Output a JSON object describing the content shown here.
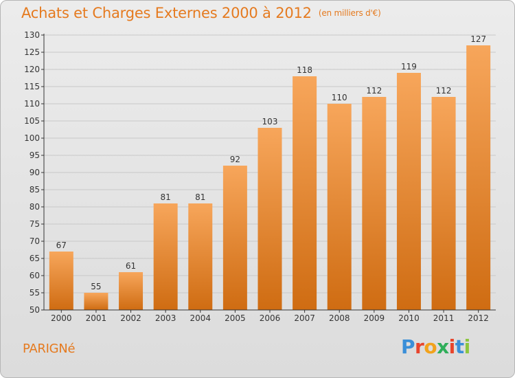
{
  "title": "Achats et Charges Externes 2000 à 2012",
  "unit": "(en milliers d'€)",
  "commune": "PARIGNé",
  "brand": {
    "text": "Proxiti",
    "letter_colors": [
      "#3a8fd8",
      "#e8452c",
      "#f2a21c",
      "#2fae5a",
      "#e8452c",
      "#3a8fd8",
      "#8cc63f"
    ]
  },
  "colors": {
    "bar_top": "#f7a65b",
    "bar_bottom": "#cf6c12",
    "title": "#e57a1f",
    "axis": "#333333",
    "grid": "#c8c8c8"
  },
  "chart_data": {
    "type": "bar",
    "title": "Achats et Charges Externes 2000 à 2012",
    "subtitle": "(en milliers d'€)",
    "categories": [
      "2000",
      "2001",
      "2002",
      "2003",
      "2004",
      "2005",
      "2006",
      "2007",
      "2008",
      "2009",
      "2010",
      "2011",
      "2012"
    ],
    "values": [
      67,
      55,
      61,
      81,
      81,
      92,
      103,
      118,
      110,
      112,
      119,
      112,
      127
    ],
    "ylim": [
      50,
      130
    ],
    "ytick_step": 5,
    "grid": true,
    "data_labels": true
  }
}
